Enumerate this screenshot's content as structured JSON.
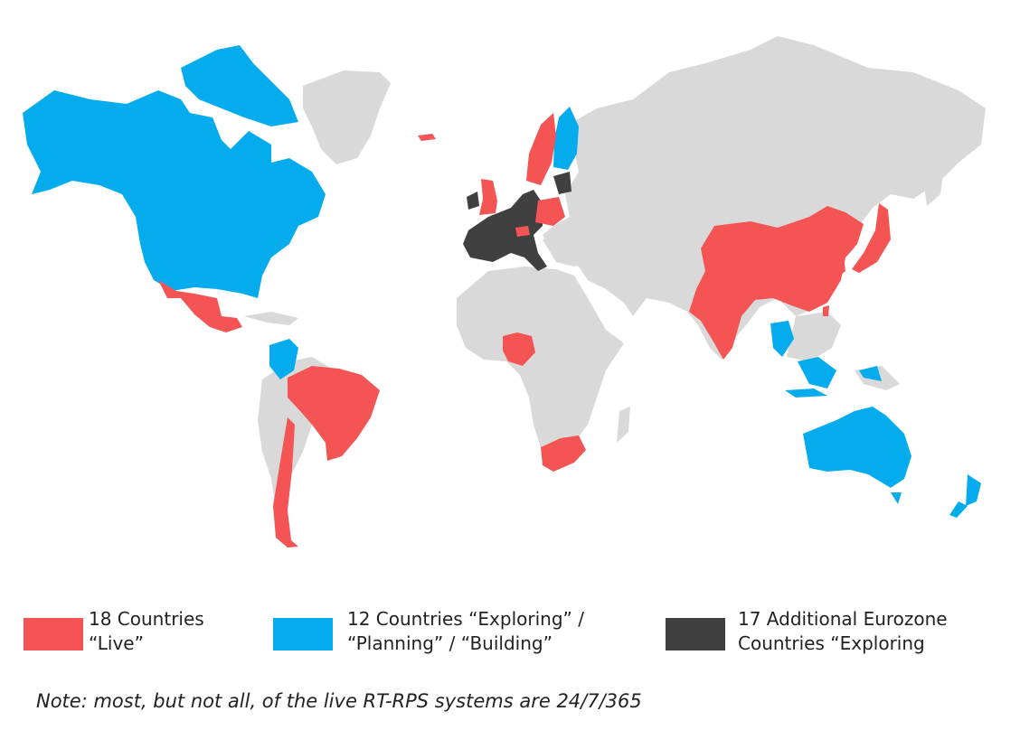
{
  "colors": {
    "live": "#f45454",
    "exploring": "#04acee",
    "eurozone": "#404040",
    "other": "#d9d9d9"
  },
  "legend": [
    {
      "key": "live",
      "text": "18 Countries\n“Live”"
    },
    {
      "key": "exploring",
      "text": "12 Countries “Exploring” /\n“Planning” / “Building”"
    },
    {
      "key": "eurozone",
      "text": "17 Additional Eurozone\nCountries “Exploring"
    }
  ],
  "note": "Note: most, but not all, of the live RT-RPS systems are 24/7/365",
  "regions": [
    {
      "name": "canada-usa",
      "status": "exploring"
    },
    {
      "name": "greenland",
      "status": "other"
    },
    {
      "name": "mexico",
      "status": "live"
    },
    {
      "name": "colombia",
      "status": "exploring"
    },
    {
      "name": "brazil",
      "status": "live"
    },
    {
      "name": "chile",
      "status": "live"
    },
    {
      "name": "iceland",
      "status": "live"
    },
    {
      "name": "uk",
      "status": "live"
    },
    {
      "name": "sweden",
      "status": "live"
    },
    {
      "name": "finland",
      "status": "exploring"
    },
    {
      "name": "poland",
      "status": "live"
    },
    {
      "name": "switzerland",
      "status": "live"
    },
    {
      "name": "eurozone",
      "status": "eurozone"
    },
    {
      "name": "nigeria",
      "status": "live"
    },
    {
      "name": "south-africa",
      "status": "live"
    },
    {
      "name": "china",
      "status": "live"
    },
    {
      "name": "india",
      "status": "live"
    },
    {
      "name": "japan",
      "status": "live"
    },
    {
      "name": "korea",
      "status": "live"
    },
    {
      "name": "thailand",
      "status": "exploring"
    },
    {
      "name": "malaysia-indonesia",
      "status": "exploring"
    },
    {
      "name": "australia",
      "status": "exploring"
    },
    {
      "name": "new-zealand",
      "status": "exploring"
    }
  ]
}
